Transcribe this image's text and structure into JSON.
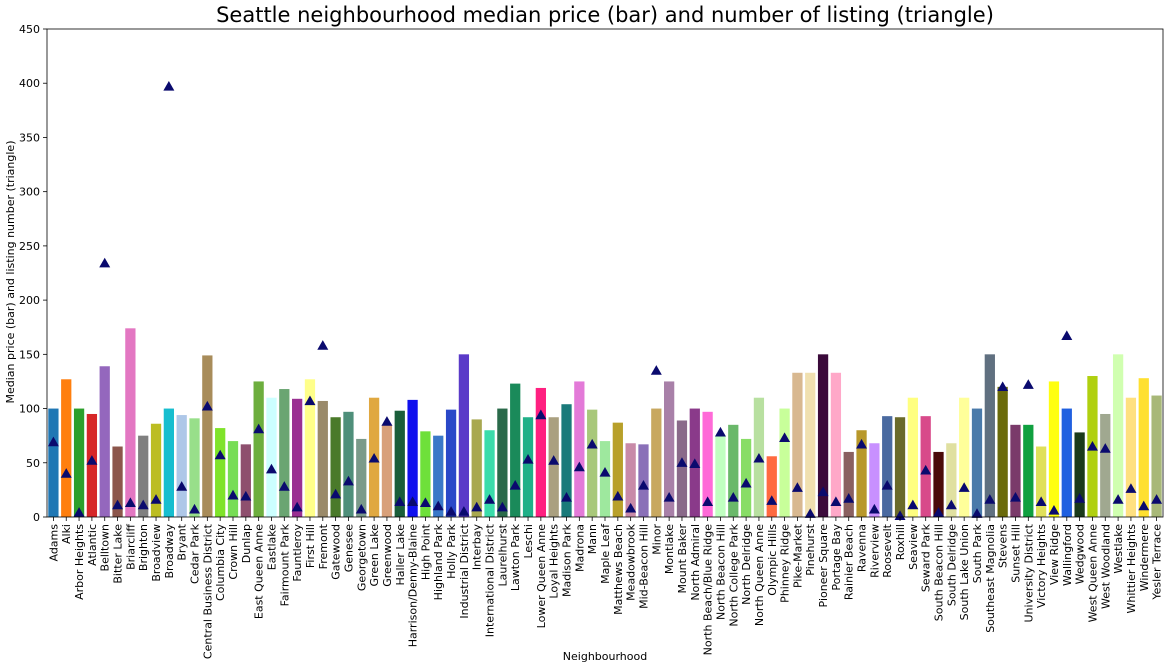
{
  "chart_data": {
    "type": "bar",
    "title": "Seattle neighbourhood median price (bar) and number of listing (triangle)",
    "xlabel": "Neighbourhood",
    "ylabel": "Median price (bar) and listing number (triangle)",
    "ylim": [
      0,
      450
    ],
    "yticks": [
      0,
      50,
      100,
      150,
      200,
      250,
      300,
      350,
      400,
      450
    ],
    "grid": false,
    "marker_color": "#0a0a6e",
    "categories": [
      "Adams",
      "Alki",
      "Arbor Heights",
      "Atlantic",
      "Belltown",
      "Bitter Lake",
      "Briarcliff",
      "Brighton",
      "Broadview",
      "Broadway",
      "Bryant",
      "Cedar Park",
      "Central Business District",
      "Columbia City",
      "Crown Hill",
      "Dunlap",
      "East Queen Anne",
      "Eastlake",
      "Fairmount Park",
      "Fauntleroy",
      "First Hill",
      "Fremont",
      "Gatewood",
      "Genesee",
      "Georgetown",
      "Green Lake",
      "Greenwood",
      "Haller Lake",
      "Harrison/Denny-Blaine",
      "High Point",
      "Highland Park",
      "Holly Park",
      "Industrial District",
      "Interbay",
      "International District",
      "Laurelhurst",
      "Lawton Park",
      "Leschi",
      "Lower Queen Anne",
      "Loyal Heights",
      "Madison Park",
      "Madrona",
      "Mann",
      "Maple Leaf",
      "Matthews Beach",
      "Meadowbrook",
      "Mid-Beacon Hill",
      "Minor",
      "Montlake",
      "Mount Baker",
      "North Admiral",
      "North Beach/Blue Ridge",
      "North Beacon Hill",
      "North College Park",
      "North Delridge",
      "North Queen Anne",
      "Olympic Hills",
      "Phinney Ridge",
      "Pike-Market",
      "Pinehurst",
      "Pioneer Square",
      "Portage Bay",
      "Rainier Beach",
      "Ravenna",
      "Riverview",
      "Roosevelt",
      "Roxhill",
      "Seaview",
      "Seward Park",
      "South Beacon Hill",
      "South Delridge",
      "South Lake Union",
      "South Park",
      "Southeast Magnolia",
      "Stevens",
      "Sunset Hill",
      "University District",
      "Victory Heights",
      "View Ridge",
      "Wallingford",
      "Wedgwood",
      "West Queen Anne",
      "West Woodland",
      "Westlake",
      "Whittier Heights",
      "Windermere",
      "Yesler Terrace"
    ],
    "series": [
      {
        "name": "Median price",
        "kind": "bar",
        "values": [
          100,
          127,
          100,
          95,
          139,
          65,
          174,
          75,
          86,
          100,
          94,
          91,
          149,
          82,
          70,
          67,
          125,
          110,
          118,
          109,
          127,
          107,
          92,
          97,
          72,
          110,
          85,
          98,
          108,
          79,
          75,
          99,
          150,
          90,
          80,
          100,
          123,
          92,
          119,
          92,
          104,
          125,
          99,
          70,
          87,
          68,
          67,
          100,
          125,
          89,
          100,
          97,
          75,
          85,
          72,
          110,
          56,
          100,
          133,
          133,
          150,
          133,
          60,
          80,
          68,
          93,
          92,
          110,
          93,
          60,
          68,
          110,
          100,
          150,
          120,
          85,
          85,
          65,
          125,
          100,
          78,
          130,
          95,
          150,
          110,
          128,
          112
        ]
      },
      {
        "name": "Number of listings",
        "kind": "triangle",
        "values": [
          69,
          40,
          4,
          52,
          234,
          11,
          13,
          11,
          16,
          397,
          28,
          7,
          102,
          57,
          20,
          19,
          81,
          44,
          28,
          9,
          107,
          158,
          21,
          33,
          7,
          54,
          88,
          14,
          14,
          13,
          10,
          5,
          5,
          9,
          16,
          9,
          29,
          53,
          94,
          52,
          18,
          46,
          67,
          41,
          19,
          8,
          29,
          135,
          18,
          50,
          49,
          14,
          78,
          18,
          31,
          54,
          15,
          73,
          27,
          3,
          23,
          14,
          17,
          67,
          7,
          29,
          1,
          11,
          43,
          4,
          11,
          27,
          3,
          16,
          120,
          18,
          122,
          14,
          6,
          167,
          17,
          65,
          63,
          16,
          26,
          10,
          16
        ]
      }
    ],
    "bar_colors": [
      "#1f77b4",
      "#ff7f0e",
      "#2ca02c",
      "#d62728",
      "#9467bd",
      "#8c564b",
      "#e377c2",
      "#7f7f7f",
      "#bcbd22",
      "#17becf",
      "#aec7e8",
      "#98df8a",
      "#a88c5a",
      "#7fe32a",
      "#77dd55",
      "#8e4f6e",
      "#6dae3e",
      "#ccffff",
      "#6aa572",
      "#9a3092",
      "#ffff8a",
      "#9a8a6a",
      "#4a7a2a",
      "#4f8f7a",
      "#7a9a8a",
      "#e0a840",
      "#d8a07a",
      "#1a5e3a",
      "#1010ee",
      "#6ee03a",
      "#3a78c8",
      "#2a48c8",
      "#5a3ac8",
      "#a8a850",
      "#3adcaa",
      "#2a6a4a",
      "#1a8a5a",
      "#20b088",
      "#ff2080",
      "#aaa080",
      "#1a7a7a",
      "#e37ad8",
      "#a8c87a",
      "#9ee89e",
      "#b8a02a",
      "#c88aa8",
      "#8a70b8",
      "#c8a860",
      "#a880a8",
      "#8a6a8a",
      "#8a3a8a",
      "#ff6ad8",
      "#c0ffc0",
      "#6ab86a",
      "#88dd66",
      "#b8e0a0",
      "#ff6a40",
      "#c8ff9a",
      "#d8b890",
      "#f0e0b0",
      "#3a0a3a",
      "#ffa8c8",
      "#8a6060",
      "#b8982a",
      "#c890ff",
      "#4a6aa0",
      "#6a6a2a",
      "#ffff80",
      "#d84a8a",
      "#4a0a0a",
      "#e0e0a0",
      "#ffff9a",
      "#4a7aaa",
      "#607080",
      "#6a6a0a",
      "#7a3a6a",
      "#10a040",
      "#e0e05a",
      "#ffff10",
      "#2060e0",
      "#1a3a1a",
      "#b0d010",
      "#a0a890",
      "#d0ffb0",
      "#ffe080",
      "#ffe030",
      "#a8b878"
    ]
  }
}
